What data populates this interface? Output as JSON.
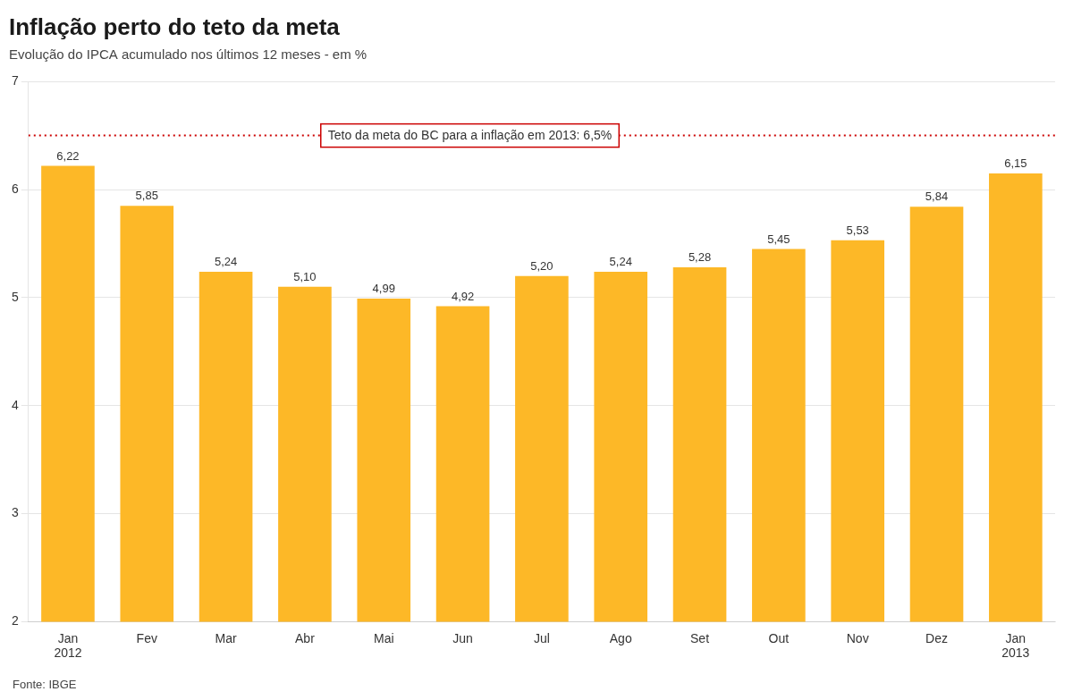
{
  "chart_data": {
    "type": "bar",
    "title": "Inflação perto do teto da meta",
    "subtitle": "Evolução do IPCA acumulado nos últimos 12 meses - em %",
    "categories": [
      "Jan\n2012",
      "Fev",
      "Mar",
      "Abr",
      "Mai",
      "Jun",
      "Jul",
      "Ago",
      "Set",
      "Out",
      "Nov",
      "Dez",
      "Jan\n2013"
    ],
    "values": [
      6.22,
      5.85,
      5.24,
      5.1,
      4.99,
      4.92,
      5.2,
      5.24,
      5.28,
      5.45,
      5.53,
      5.84,
      6.15
    ],
    "value_labels": [
      "6,22",
      "5,85",
      "5,24",
      "5,10",
      "4,99",
      "4,92",
      "5,20",
      "5,24",
      "5,28",
      "5,45",
      "5,53",
      "5,84",
      "6,15"
    ],
    "data_labels": true,
    "color": "#FDB827",
    "ylim": [
      2,
      7
    ],
    "yticks": [
      2,
      3,
      4,
      5,
      6,
      7
    ],
    "grid": true,
    "annotations": [
      {
        "text": "Teto da meta do BC para a inflação em 2013: 6,5%",
        "y": 6.5,
        "color": "#CC0000"
      }
    ],
    "source": "Fonte: IBGE"
  }
}
